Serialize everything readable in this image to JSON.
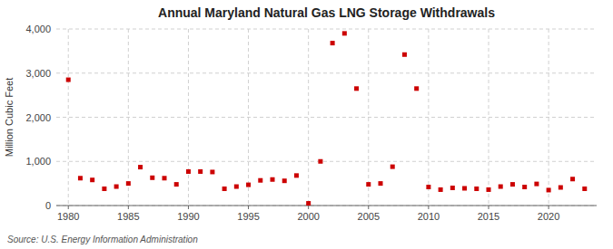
{
  "chart_data": {
    "type": "scatter",
    "title": "Annual Maryland Natural Gas LNG Storage Withdrawals",
    "ylabel": "Million Cubic Feet",
    "source": "Source: U.S. Energy Information Administration",
    "color": "#cc0000",
    "marker": "square",
    "grid": true,
    "xlim": [
      1979,
      2024
    ],
    "ylim": [
      0,
      4000
    ],
    "xticks": [
      1980,
      1985,
      1990,
      1995,
      2000,
      2005,
      2010,
      2015,
      2020
    ],
    "yticks": [
      0,
      {
        "value": 1000,
        "label": "1,000"
      },
      {
        "value": 2000,
        "label": "2,000"
      },
      {
        "value": 3000,
        "label": "3,000"
      },
      {
        "value": 4000,
        "label": "4,000"
      }
    ],
    "x": [
      1980,
      1981,
      1982,
      1983,
      1984,
      1985,
      1986,
      1987,
      1988,
      1989,
      1990,
      1991,
      1992,
      1993,
      1994,
      1995,
      1996,
      1997,
      1998,
      1999,
      2000,
      2001,
      2002,
      2003,
      2004,
      2005,
      2006,
      2007,
      2008,
      2009,
      2010,
      2011,
      2012,
      2013,
      2014,
      2015,
      2016,
      2017,
      2018,
      2019,
      2020,
      2021,
      2022,
      2023
    ],
    "values": [
      2850,
      620,
      580,
      380,
      430,
      500,
      870,
      630,
      620,
      480,
      770,
      770,
      760,
      380,
      430,
      470,
      570,
      590,
      560,
      680,
      50,
      1000,
      3680,
      3900,
      2650,
      480,
      500,
      880,
      3420,
      2650,
      420,
      360,
      400,
      390,
      380,
      360,
      430,
      480,
      420,
      490,
      350,
      410,
      600,
      380
    ]
  }
}
